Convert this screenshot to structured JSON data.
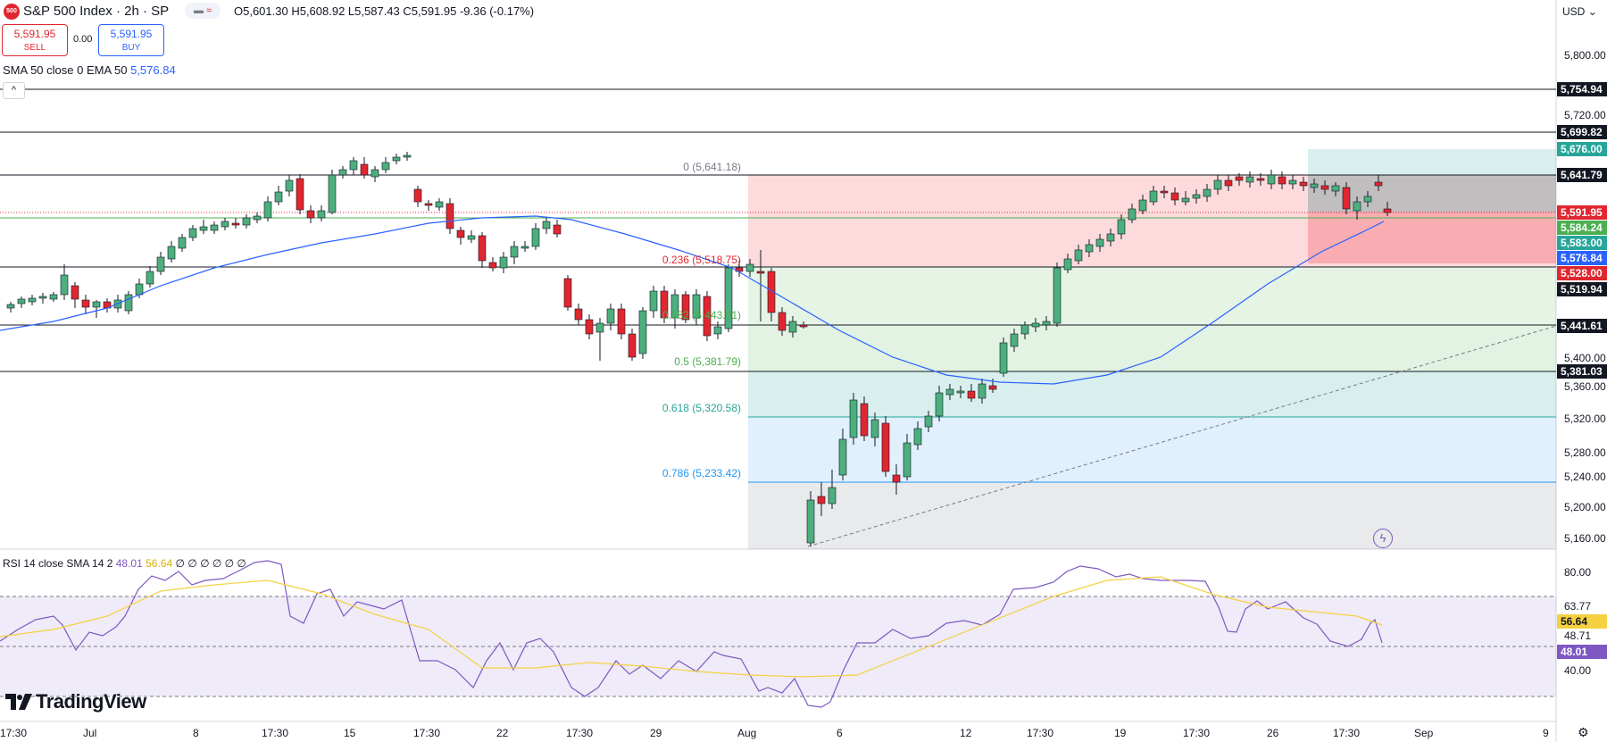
{
  "header": {
    "symbol_icon": "500",
    "title": "S&P 500 Index · 2h · SP",
    "compare_icon": "compare-icon",
    "ohlc": "O5,601.30  H5,608.92  L5,587.43  C5,591.95  -9.36 (-0.17%)",
    "sell_price": "5,591.95",
    "sell_label": "SELL",
    "spread": "0.00",
    "buy_price": "5,591.95",
    "buy_label": "BUY",
    "indicator_1": "SMA 50 close 0 EMA 50",
    "indicator_1_value": "5,576.84",
    "collapse_icon": "chevron-up-icon"
  },
  "rsi": {
    "legend": "RSI 14 close SMA 14 2",
    "rsi_value": "48.01",
    "sma_value": "56.64",
    "extra": "∅ ∅ ∅ ∅ ∅ ∅"
  },
  "branding": {
    "logo": "TradingView"
  },
  "currency": "USD",
  "colors": {
    "up": "#26a69a",
    "up_body": "#4caf7d",
    "down": "#e0262f",
    "sma": "#2962ff",
    "rsi": "#7e57c2",
    "rsi_sma": "#f5d142"
  },
  "fib_labels": [
    {
      "text": "0 (5,641.18)",
      "color": "#787b86"
    },
    {
      "text": "0.236 (5,518.75)",
      "color": "#e0262f"
    },
    {
      "text": "0.382 (5,443.01)",
      "color": "#4caf50"
    },
    {
      "text": "0.5 (5,381.79)",
      "color": "#4caf50"
    },
    {
      "text": "0.618 (5,320.58)",
      "color": "#26a69a"
    },
    {
      "text": "0.786 (5,233.42)",
      "color": "#2196f3"
    }
  ],
  "price_axis": [
    "5,800.00",
    "5,720.00",
    "5,400.00",
    "5,360.00",
    "5,320.00",
    "5,280.00",
    "5,240.00",
    "5,200.00",
    "5,160.00"
  ],
  "price_tags": [
    {
      "text": "5,754.94",
      "bg": "#131722",
      "fg": "#ffffff"
    },
    {
      "text": "5,699.82",
      "bg": "#131722",
      "fg": "#ffffff"
    },
    {
      "text": "5,676.00",
      "bg": "#26a69a",
      "fg": "#ffffff"
    },
    {
      "text": "5,641.79",
      "bg": "#131722",
      "fg": "#ffffff"
    },
    {
      "text": "5,591.95",
      "bg": "#e0262f",
      "fg": "#ffffff"
    },
    {
      "text": "5,584.24",
      "bg": "#4caf50",
      "fg": "#ffffff"
    },
    {
      "text": "5,583.00",
      "bg": "#26a69a",
      "fg": "#ffffff"
    },
    {
      "text": "5,576.84",
      "bg": "#2962ff",
      "fg": "#ffffff"
    },
    {
      "text": "5,528.00",
      "bg": "#e0262f",
      "fg": "#ffffff"
    },
    {
      "text": "5,519.94",
      "bg": "#131722",
      "fg": "#ffffff"
    },
    {
      "text": "5,441.61",
      "bg": "#131722",
      "fg": "#ffffff"
    },
    {
      "text": "5,381.03",
      "bg": "#131722",
      "fg": "#ffffff"
    }
  ],
  "rsi_axis": [
    "80.00",
    "63.77",
    "48.71",
    "40.00"
  ],
  "rsi_tags": [
    {
      "text": "56.64",
      "bg": "#f5d142",
      "fg": "#131722"
    },
    {
      "text": "48.01",
      "bg": "#7e57c2",
      "fg": "#ffffff"
    }
  ],
  "date_axis": [
    "17:30",
    "Jul",
    "8",
    "17:30",
    "15",
    "17:30",
    "22",
    "17:30",
    "29",
    "Aug",
    "6",
    "12",
    "17:30",
    "19",
    "17:30",
    "26",
    "17:30",
    "Sep",
    "9"
  ],
  "settings_icon": "gear-icon",
  "alert_icon": "lightning-icon"
}
